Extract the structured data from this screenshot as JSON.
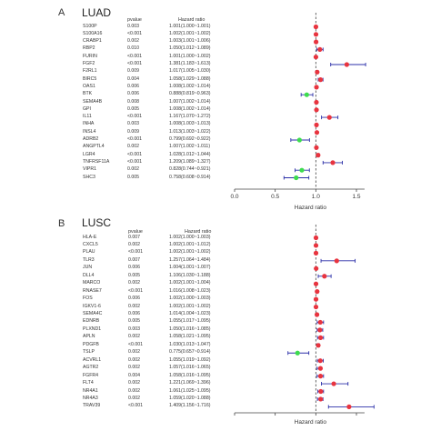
{
  "chart_data": [
    {
      "type": "forest",
      "panel": "A",
      "title": "LUAD",
      "col_gene": "",
      "col_pvalue": "pvalue",
      "col_hr": "Hazard ratio",
      "xlabel": "Hazard ratio",
      "xlim": [
        0.0,
        1.6
      ],
      "xticks": [
        "0.0",
        "0.5",
        "1.0",
        "1.5"
      ],
      "xtick_values": [
        0.0,
        0.5,
        1.0,
        1.5
      ],
      "reference_line": 1.0,
      "colors": {
        "risk": "#e8343f",
        "protective": "#3ddc4e",
        "ci": "#2b2fa8"
      },
      "rows": [
        {
          "gene": "S100P",
          "pvalue": "0.003",
          "hr_text": "1.001(1.000~1.001)",
          "hr": 1.001,
          "lo": 1.0,
          "hi": 1.001
        },
        {
          "gene": "S100A16",
          "pvalue": "<0.001",
          "hr_text": "1.002(1.001~1.002)",
          "hr": 1.002,
          "lo": 1.001,
          "hi": 1.002
        },
        {
          "gene": "CRABP1",
          "pvalue": "0.002",
          "hr_text": "1.003(1.001~1.006)",
          "hr": 1.003,
          "lo": 1.001,
          "hi": 1.006
        },
        {
          "gene": "RBP2",
          "pvalue": "0.010",
          "hr_text": "1.050(1.012~1.089)",
          "hr": 1.05,
          "lo": 1.012,
          "hi": 1.089
        },
        {
          "gene": "FURIN",
          "pvalue": "<0.001",
          "hr_text": "1.001(1.000~1.002)",
          "hr": 1.001,
          "lo": 1.0,
          "hi": 1.002
        },
        {
          "gene": "FGF2",
          "pvalue": "<0.001",
          "hr_text": "1.381(1.183~1.613)",
          "hr": 1.381,
          "lo": 1.183,
          "hi": 1.613
        },
        {
          "gene": "F2RL1",
          "pvalue": "0.009",
          "hr_text": "1.017(1.005~1.030)",
          "hr": 1.017,
          "lo": 1.005,
          "hi": 1.03
        },
        {
          "gene": "BIRC5",
          "pvalue": "0.004",
          "hr_text": "1.058(1.029~1.088)",
          "hr": 1.058,
          "lo": 1.029,
          "hi": 1.088
        },
        {
          "gene": "OAS1",
          "pvalue": "0.006",
          "hr_text": "1.008(1.002~1.014)",
          "hr": 1.008,
          "lo": 1.002,
          "hi": 1.014
        },
        {
          "gene": "BTK",
          "pvalue": "0.006",
          "hr_text": "0.888(0.819~0.963)",
          "hr": 0.888,
          "lo": 0.819,
          "hi": 0.963
        },
        {
          "gene": "SEMA4B",
          "pvalue": "0.008",
          "hr_text": "1.007(1.002~1.014)",
          "hr": 1.007,
          "lo": 1.002,
          "hi": 1.014
        },
        {
          "gene": "GPI",
          "pvalue": "0.005",
          "hr_text": "1.008(1.002~1.014)",
          "hr": 1.008,
          "lo": 1.002,
          "hi": 1.014
        },
        {
          "gene": "IL11",
          "pvalue": "<0.001",
          "hr_text": "1.167(1.070~1.272)",
          "hr": 1.167,
          "lo": 1.07,
          "hi": 1.272
        },
        {
          "gene": "INHA",
          "pvalue": "0.003",
          "hr_text": "1.008(1.003~1.013)",
          "hr": 1.008,
          "lo": 1.003,
          "hi": 1.013
        },
        {
          "gene": "INSL4",
          "pvalue": "0.009",
          "hr_text": "1.013(1.003~1.022)",
          "hr": 1.013,
          "lo": 1.003,
          "hi": 1.022
        },
        {
          "gene": "ADRB2",
          "pvalue": "<0.001",
          "hr_text": "0.799(0.692~0.922)",
          "hr": 0.799,
          "lo": 0.692,
          "hi": 0.922
        },
        {
          "gene": "ANGPTL4",
          "pvalue": "0.002",
          "hr_text": "1.007(1.002~1.011)",
          "hr": 1.007,
          "lo": 1.002,
          "hi": 1.011
        },
        {
          "gene": "LGR4",
          "pvalue": "<0.001",
          "hr_text": "1.028(1.012~1.044)",
          "hr": 1.028,
          "lo": 1.012,
          "hi": 1.044
        },
        {
          "gene": "TNFRSF11A",
          "pvalue": "<0.001",
          "hr_text": "1.209(1.089~1.327)",
          "hr": 1.209,
          "lo": 1.089,
          "hi": 1.327
        },
        {
          "gene": "VIPR1",
          "pvalue": "0.002",
          "hr_text": "0.828(0.744~0.921)",
          "hr": 0.828,
          "lo": 0.744,
          "hi": 0.921
        },
        {
          "gene": "SHC3",
          "pvalue": "0.005",
          "hr_text": "0.758(0.608~0.914)",
          "hr": 0.758,
          "lo": 0.608,
          "hi": 0.914
        }
      ]
    },
    {
      "type": "forest",
      "panel": "B",
      "title": "LUSC",
      "col_gene": "",
      "col_pvalue": "pvalue",
      "col_hr": "Hazard ratio",
      "xlabel": "Hazard ratio",
      "xlim": [
        0.0,
        1.6
      ],
      "xticks": [
        "0.0",
        "0.5",
        "1.0",
        "1.5"
      ],
      "xtick_values": [
        0.0,
        0.5,
        1.0,
        1.5
      ],
      "reference_line": 1.0,
      "colors": {
        "risk": "#e8343f",
        "protective": "#3ddc4e",
        "ci": "#2b2fa8"
      },
      "rows": [
        {
          "gene": "HLA-E",
          "pvalue": "0.007",
          "hr_text": "1.002(1.000~1.003)",
          "hr": 1.002,
          "lo": 1.0,
          "hi": 1.003
        },
        {
          "gene": "CXCL5",
          "pvalue": "0.002",
          "hr_text": "1.002(1.001~1.012)",
          "hr": 1.002,
          "lo": 1.001,
          "hi": 1.012
        },
        {
          "gene": "PLAU",
          "pvalue": "<0.001",
          "hr_text": "1.002(1.001~1.002)",
          "hr": 1.002,
          "lo": 1.001,
          "hi": 1.002
        },
        {
          "gene": "TLR3",
          "pvalue": "0.007",
          "hr_text": "1.257(1.064~1.484)",
          "hr": 1.257,
          "lo": 1.064,
          "hi": 1.484
        },
        {
          "gene": "JUN",
          "pvalue": "0.006",
          "hr_text": "1.004(1.001~1.007)",
          "hr": 1.004,
          "lo": 1.001,
          "hi": 1.007
        },
        {
          "gene": "DLL4",
          "pvalue": "0.005",
          "hr_text": "1.106(1.030~1.188)",
          "hr": 1.106,
          "lo": 1.03,
          "hi": 1.188
        },
        {
          "gene": "MARCO",
          "pvalue": "0.002",
          "hr_text": "1.002(1.001~1.004)",
          "hr": 1.002,
          "lo": 1.001,
          "hi": 1.004
        },
        {
          "gene": "RNASE7",
          "pvalue": "<0.001",
          "hr_text": "1.016(1.008~1.023)",
          "hr": 1.016,
          "lo": 1.008,
          "hi": 1.023
        },
        {
          "gene": "FOS",
          "pvalue": "0.006",
          "hr_text": "1.002(1.000~1.003)",
          "hr": 1.002,
          "lo": 1.0,
          "hi": 1.003
        },
        {
          "gene": "IGKV1-6",
          "pvalue": "0.002",
          "hr_text": "1.002(1.001~1.002)",
          "hr": 1.002,
          "lo": 1.001,
          "hi": 1.002
        },
        {
          "gene": "SEMA4C",
          "pvalue": "0.006",
          "hr_text": "1.014(1.004~1.023)",
          "hr": 1.014,
          "lo": 1.004,
          "hi": 1.023
        },
        {
          "gene": "EDNRB",
          "pvalue": "0.005",
          "hr_text": "1.055(1.017~1.095)",
          "hr": 1.055,
          "lo": 1.017,
          "hi": 1.095
        },
        {
          "gene": "PLXND1",
          "pvalue": "0.003",
          "hr_text": "1.050(1.016~1.085)",
          "hr": 1.05,
          "lo": 1.016,
          "hi": 1.085
        },
        {
          "gene": "APLN",
          "pvalue": "0.002",
          "hr_text": "1.058(1.021~1.095)",
          "hr": 1.058,
          "lo": 1.021,
          "hi": 1.095
        },
        {
          "gene": "PDGFB",
          "pvalue": "<0.001",
          "hr_text": "1.030(1.013~1.047)",
          "hr": 1.03,
          "lo": 1.013,
          "hi": 1.047
        },
        {
          "gene": "TSLP",
          "pvalue": "0.002",
          "hr_text": "0.775(0.657~0.914)",
          "hr": 0.775,
          "lo": 0.657,
          "hi": 0.914
        },
        {
          "gene": "ACVRL1",
          "pvalue": "0.002",
          "hr_text": "1.055(1.019~1.092)",
          "hr": 1.055,
          "lo": 1.019,
          "hi": 1.092
        },
        {
          "gene": "AGTR2",
          "pvalue": "0.002",
          "hr_text": "1.057(1.016~1.065)",
          "hr": 1.057,
          "lo": 1.016,
          "hi": 1.065
        },
        {
          "gene": "FGFR4",
          "pvalue": "0.004",
          "hr_text": "1.058(1.016~1.095)",
          "hr": 1.058,
          "lo": 1.016,
          "hi": 1.095
        },
        {
          "gene": "FLT4",
          "pvalue": "0.002",
          "hr_text": "1.221(1.069~1.396)",
          "hr": 1.221,
          "lo": 1.069,
          "hi": 1.396
        },
        {
          "gene": "NR4A1",
          "pvalue": "0.002",
          "hr_text": "1.061(1.025~1.095)",
          "hr": 1.061,
          "lo": 1.025,
          "hi": 1.095
        },
        {
          "gene": "NR4A3",
          "pvalue": "0.002",
          "hr_text": "1.059(1.020~1.088)",
          "hr": 1.059,
          "lo": 1.02,
          "hi": 1.088
        },
        {
          "gene": "TRAV39",
          "pvalue": "<0.001",
          "hr_text": "1.409(1.156~1.716)",
          "hr": 1.409,
          "lo": 1.156,
          "hi": 1.716
        }
      ]
    }
  ]
}
